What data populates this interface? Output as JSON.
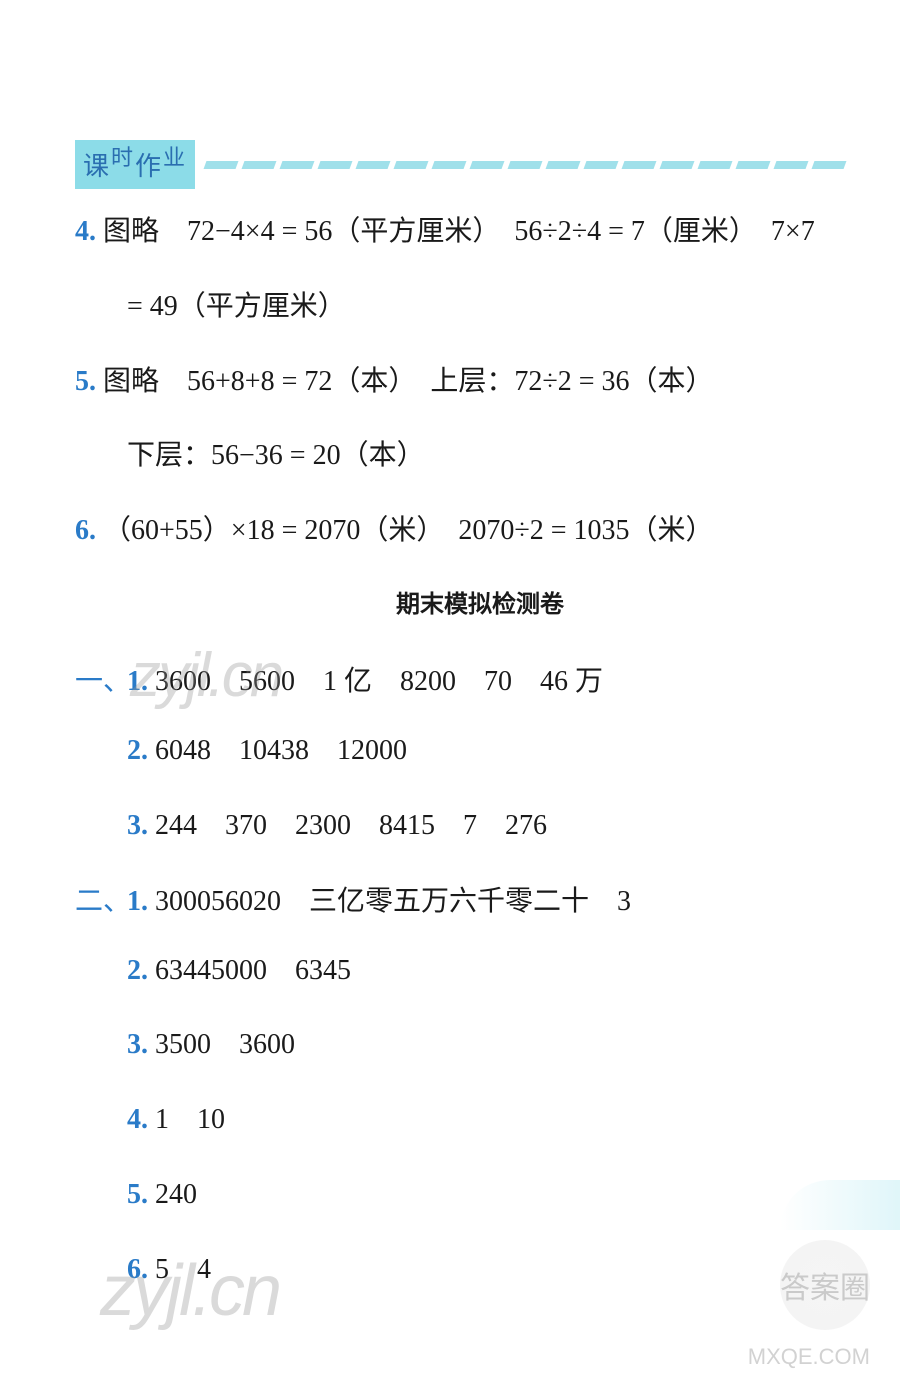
{
  "header": {
    "title_chars": [
      "课",
      "时",
      "作",
      "业"
    ]
  },
  "lines": {
    "line4_num": "4.",
    "line4_a": "图略　72−4×4 = 56（平方厘米）　56÷2÷4 = 7（厘米）　7×7",
    "line4_b": "= 49（平方厘米）",
    "line5_num": "5.",
    "line5_a": "图略　56+8+8 = 72（本）　上层：72÷2 = 36（本）",
    "line5_b": "下层：56−36 = 20（本）",
    "line6_num": "6.",
    "line6_a": "（60+55）×18 = 2070（米）　2070÷2 = 1035（米）"
  },
  "section_title": "期末模拟检测卷",
  "section1": {
    "label": "一、",
    "i1_num": "1.",
    "i1": "3600　5600　1 亿　8200　70　46 万",
    "i2_num": "2.",
    "i2": "6048　10438　12000",
    "i3_num": "3.",
    "i3": "244　370　2300　8415　7　276"
  },
  "section2": {
    "label": "二、",
    "i1_num": "1.",
    "i1": "300056020　三亿零五万六千零二十　3",
    "i2_num": "2.",
    "i2": "63445000　6345",
    "i3_num": "3.",
    "i3": "3500　3600",
    "i4_num": "4.",
    "i4": "1　10",
    "i5_num": "5.",
    "i5": "240",
    "i6_num": "6.",
    "i6": "5　4"
  },
  "watermarks": {
    "w1": "zyjl.cn",
    "w2": "zyjl.cn",
    "w3": "MXQE.COM",
    "badge": "答案圈"
  }
}
